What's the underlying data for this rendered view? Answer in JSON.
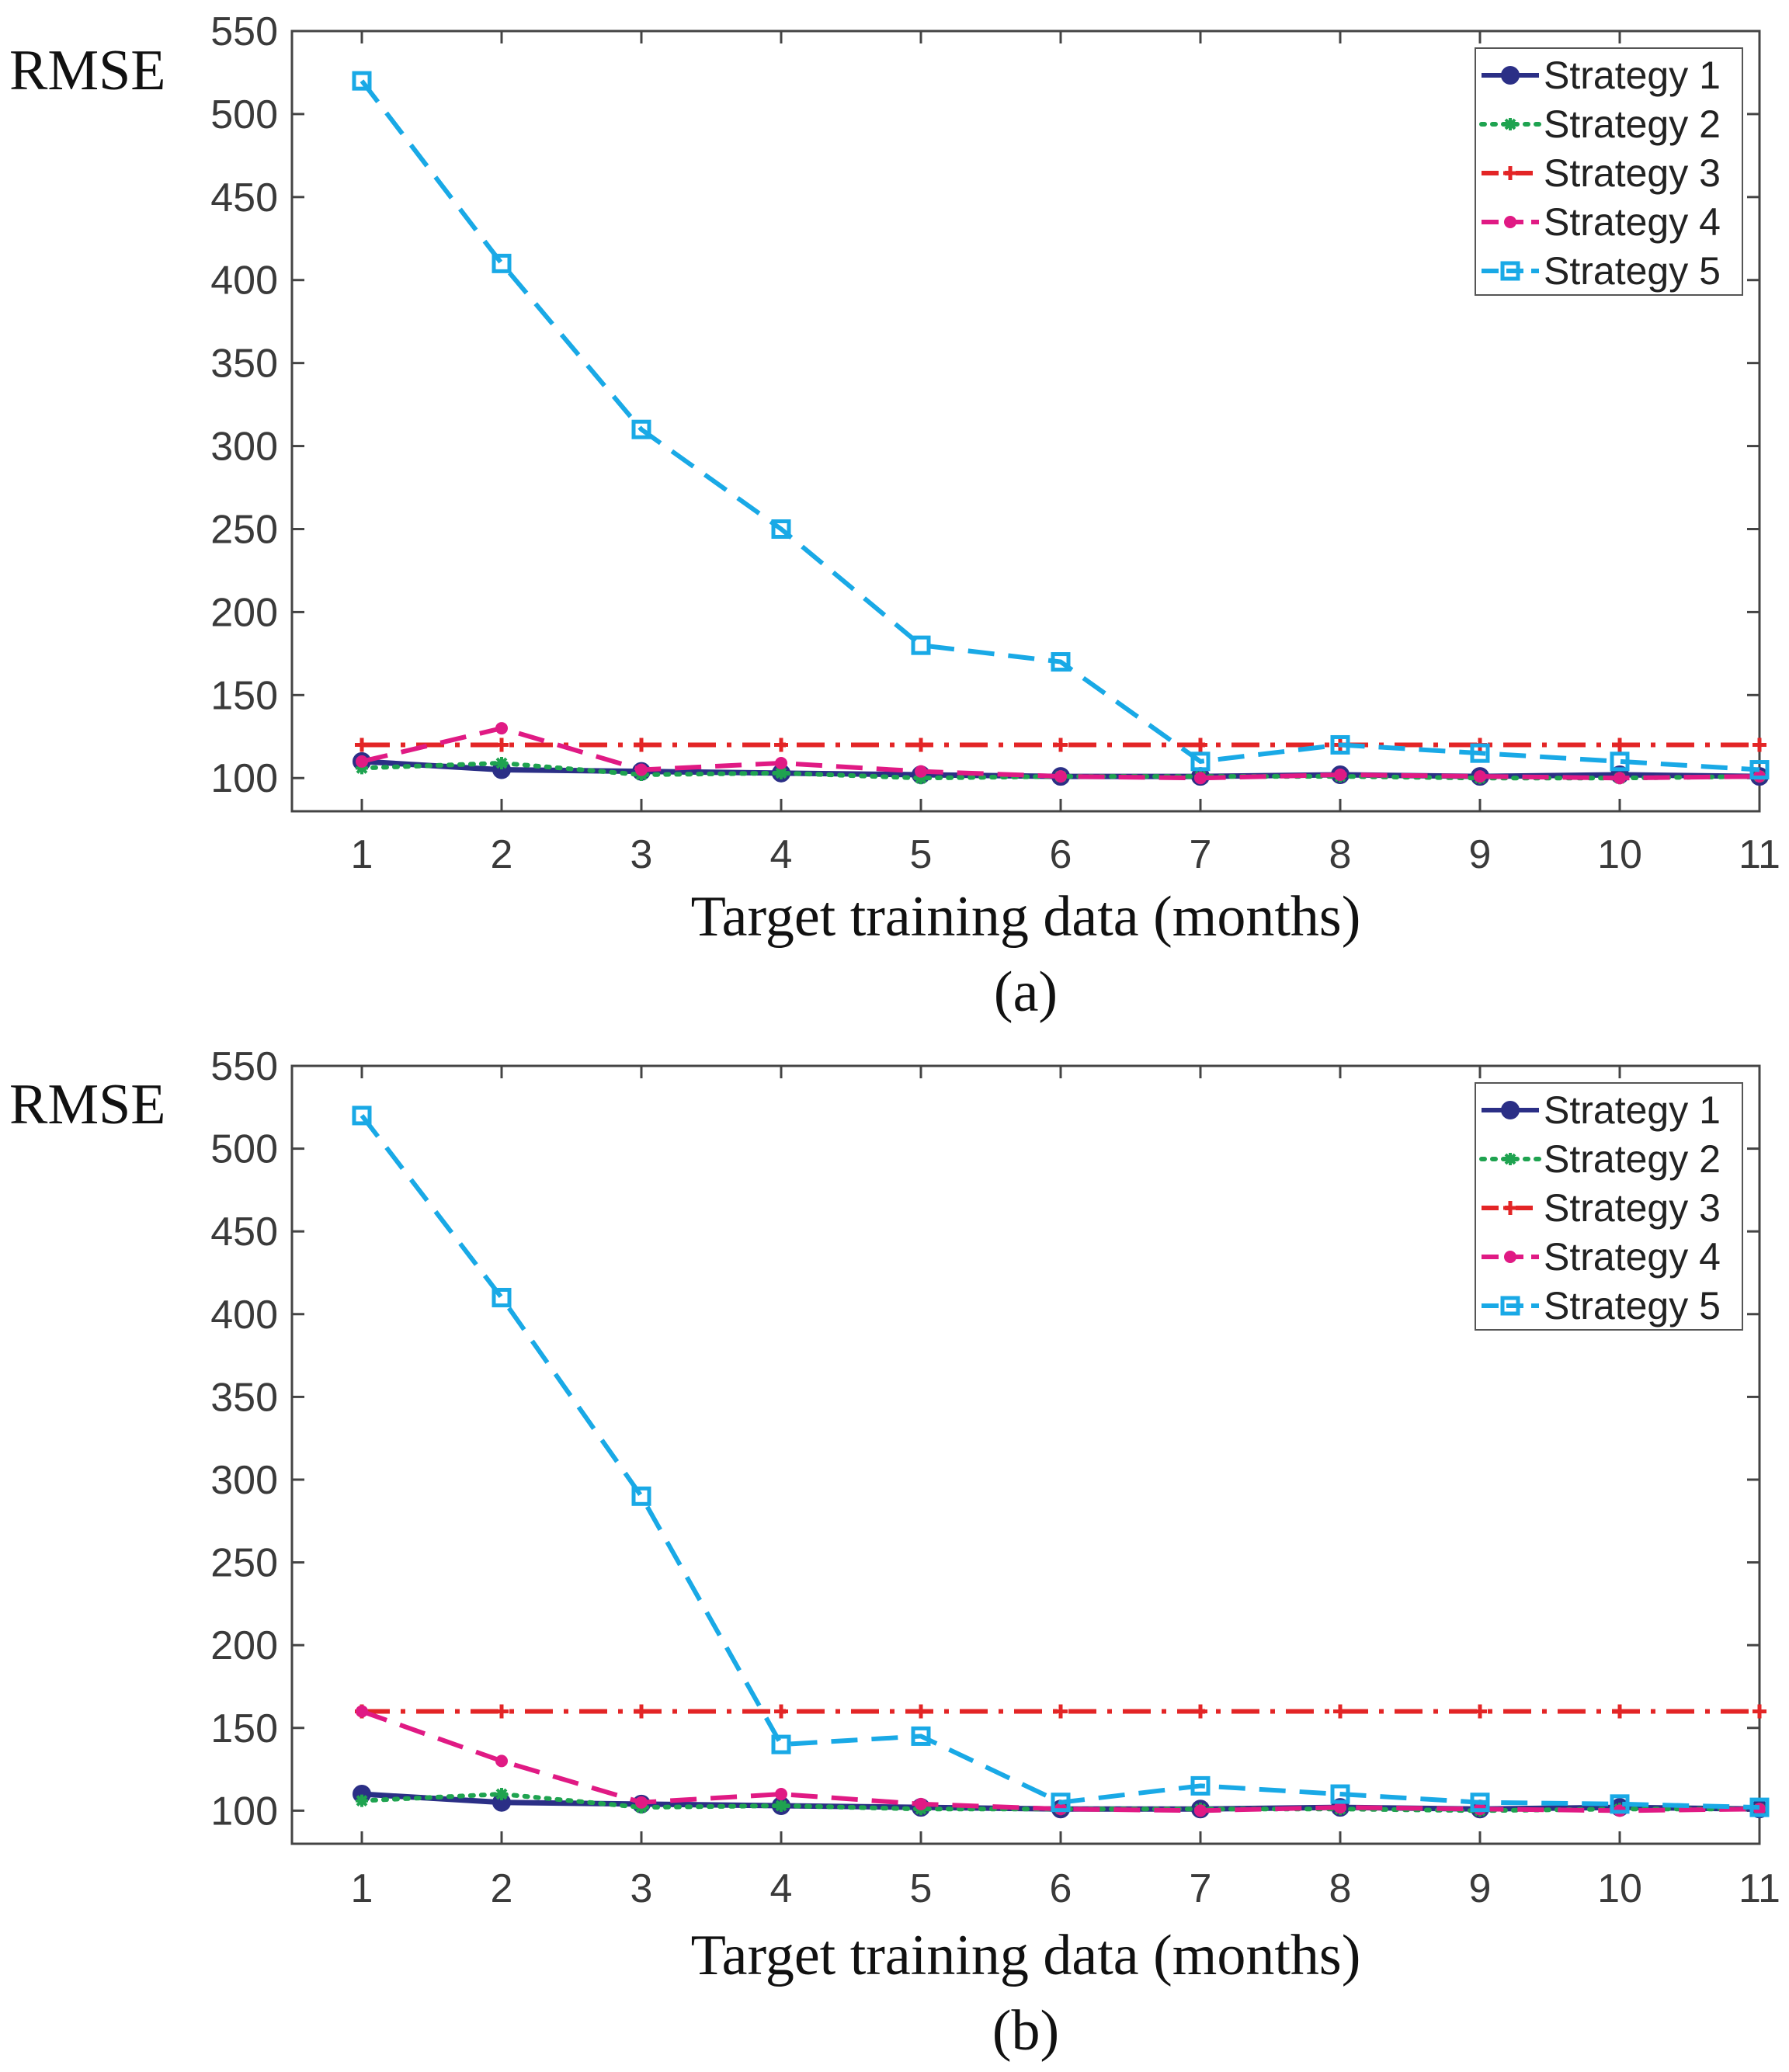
{
  "chart_data": [
    {
      "type": "line",
      "caption": "(a)",
      "xlabel": "Target training data (months)",
      "ylabel": "RMSE",
      "x": [
        1,
        2,
        3,
        4,
        5,
        6,
        7,
        8,
        9,
        10,
        11
      ],
      "xticks": [
        "1",
        "2",
        "3",
        "4",
        "5",
        "6",
        "7",
        "8",
        "9",
        "10",
        "11"
      ],
      "xlim": [
        0.5,
        11
      ],
      "ylim": [
        80,
        550
      ],
      "yticks": [
        "100",
        "150",
        "200",
        "250",
        "300",
        "350",
        "400",
        "450",
        "500",
        "550"
      ],
      "legend_position": "top-right",
      "series": [
        {
          "name": "Strategy 1",
          "color": "#2b2f86",
          "marker": "circle",
          "dash": "solid",
          "values": [
            110,
            105,
            104,
            103,
            102,
            101,
            101,
            102,
            101,
            102,
            101
          ]
        },
        {
          "name": "Strategy 2",
          "color": "#1fa350",
          "marker": "asterisk",
          "dash": "dotted",
          "values": [
            106,
            109,
            102,
            103,
            100,
            101,
            101,
            101,
            100,
            100,
            101
          ]
        },
        {
          "name": "Strategy 3",
          "color": "#e32526",
          "marker": "plus",
          "dash": "dashdot",
          "values": [
            120,
            120,
            120,
            120,
            120,
            120,
            120,
            120,
            120,
            120,
            120
          ]
        },
        {
          "name": "Strategy 4",
          "color": "#e01a84",
          "marker": "dot",
          "dash": "dashed",
          "values": [
            110,
            130,
            105,
            109,
            104,
            101,
            100,
            102,
            101,
            100,
            101
          ]
        },
        {
          "name": "Strategy 5",
          "color": "#19a9e6",
          "marker": "square",
          "dash": "dashed",
          "values": [
            520,
            410,
            310,
            250,
            180,
            170,
            110,
            120,
            115,
            110,
            105
          ]
        }
      ]
    },
    {
      "type": "line",
      "caption": "(b)",
      "xlabel": "Target training data (months)",
      "ylabel": "RMSE",
      "x": [
        1,
        2,
        3,
        4,
        5,
        6,
        7,
        8,
        9,
        10,
        11
      ],
      "xticks": [
        "1",
        "2",
        "3",
        "4",
        "5",
        "6",
        "7",
        "8",
        "9",
        "10",
        "11"
      ],
      "xlim": [
        0.5,
        11
      ],
      "ylim": [
        80,
        550
      ],
      "yticks": [
        "100",
        "150",
        "200",
        "250",
        "300",
        "350",
        "400",
        "450",
        "500",
        "550"
      ],
      "legend_position": "top-right",
      "series": [
        {
          "name": "Strategy 1",
          "color": "#2b2f86",
          "marker": "circle",
          "dash": "solid",
          "values": [
            110,
            105,
            104,
            103,
            102,
            101,
            101,
            102,
            101,
            102,
            101
          ]
        },
        {
          "name": "Strategy 2",
          "color": "#1fa350",
          "marker": "asterisk",
          "dash": "dotted",
          "values": [
            106,
            110,
            102,
            103,
            101,
            101,
            101,
            101,
            100,
            101,
            101
          ]
        },
        {
          "name": "Strategy 3",
          "color": "#e32526",
          "marker": "plus",
          "dash": "dashdot",
          "values": [
            160,
            160,
            160,
            160,
            160,
            160,
            160,
            160,
            160,
            160,
            160
          ]
        },
        {
          "name": "Strategy 4",
          "color": "#e01a84",
          "marker": "dot",
          "dash": "dashed",
          "values": [
            160,
            130,
            105,
            110,
            104,
            101,
            100,
            102,
            101,
            100,
            101
          ]
        },
        {
          "name": "Strategy 5",
          "color": "#19a9e6",
          "marker": "square",
          "dash": "dashed",
          "values": [
            520,
            410,
            290,
            140,
            145,
            105,
            115,
            110,
            105,
            104,
            102
          ]
        }
      ]
    }
  ]
}
